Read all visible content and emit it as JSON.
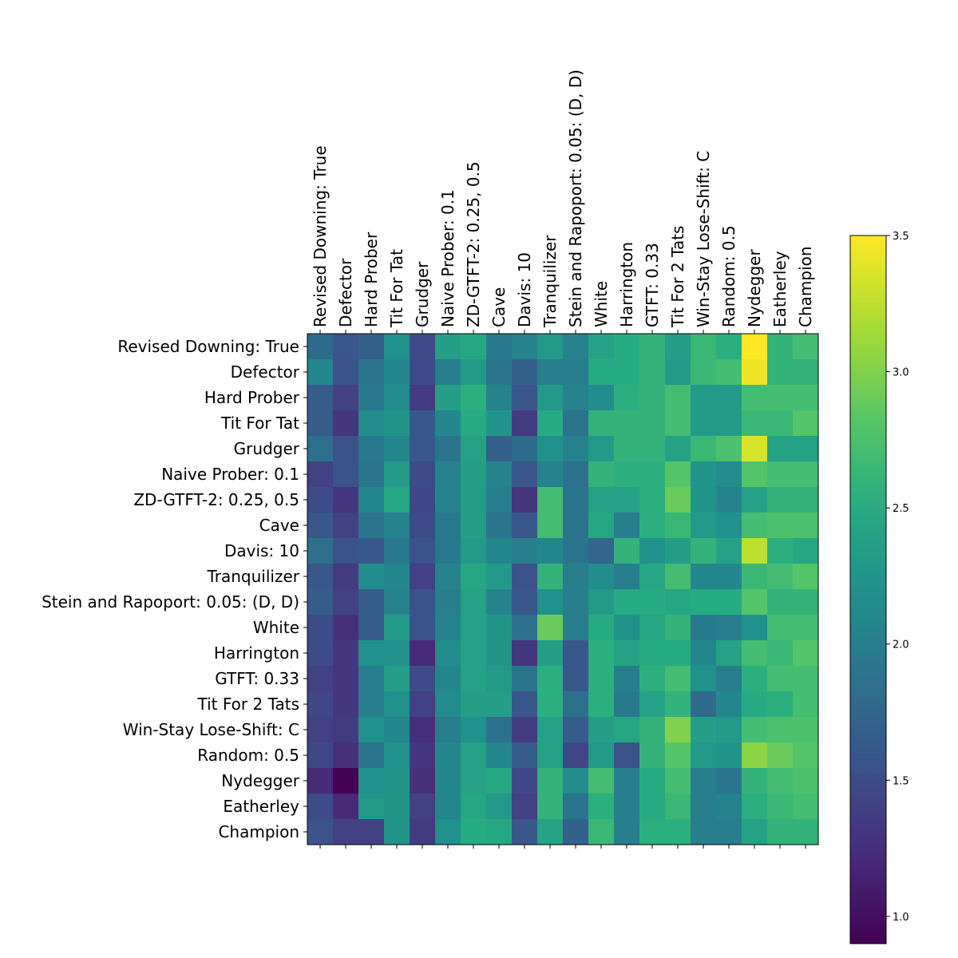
{
  "chart_data": {
    "type": "heatmap",
    "title": "",
    "xlabel": "",
    "ylabel": "",
    "x_tick_position": "top",
    "players": [
      "Revised Downing: True",
      "Defector",
      "Hard Prober",
      "Tit For Tat",
      "Grudger",
      "Naive Prober: 0.1",
      "ZD-GTFT-2: 0.25, 0.5",
      "Cave",
      "Davis: 10",
      "Tranquilizer",
      "Stein and Rapoport: 0.05: (D, D)",
      "White",
      "Harrington",
      "GTFT: 0.33",
      "Tit For 2 Tats",
      "Win-Stay Lose-Shift: C",
      "Random: 0.5",
      "Nydegger",
      "Eatherley",
      "Champion"
    ],
    "values": [
      [
        1.8,
        1.6,
        1.7,
        2.2,
        1.5,
        2.35,
        2.45,
        1.95,
        2.05,
        2.3,
        2.05,
        2.4,
        2.5,
        2.6,
        2.35,
        2.65,
        2.55,
        3.5,
        2.6,
        2.7
      ],
      [
        2.1,
        1.55,
        1.9,
        2.1,
        1.5,
        2.0,
        2.3,
        1.9,
        1.7,
        2.0,
        2.0,
        2.5,
        2.5,
        2.6,
        2.3,
        2.65,
        2.7,
        3.45,
        2.6,
        2.6
      ],
      [
        1.65,
        1.4,
        1.95,
        2.15,
        1.35,
        2.35,
        2.55,
        2.05,
        1.6,
        2.3,
        2.05,
        2.15,
        2.55,
        2.6,
        2.7,
        2.3,
        2.3,
        2.7,
        2.7,
        2.7
      ],
      [
        1.65,
        1.3,
        2.15,
        2.25,
        1.6,
        2.1,
        2.5,
        2.25,
        1.35,
        2.5,
        1.9,
        2.6,
        2.6,
        2.6,
        2.7,
        2.3,
        2.3,
        2.65,
        2.65,
        2.8
      ],
      [
        1.85,
        1.55,
        1.95,
        2.1,
        1.6,
        1.9,
        2.4,
        1.7,
        1.8,
        2.2,
        2.05,
        2.3,
        2.6,
        2.6,
        2.4,
        2.65,
        2.75,
        3.35,
        2.4,
        2.4
      ],
      [
        1.4,
        1.55,
        1.9,
        2.3,
        1.5,
        2.05,
        2.35,
        2.05,
        1.6,
        2.05,
        1.85,
        2.6,
        2.55,
        2.55,
        2.8,
        2.25,
        2.15,
        2.8,
        2.7,
        2.7
      ],
      [
        1.5,
        1.3,
        2.1,
        2.45,
        1.45,
        2.05,
        2.35,
        2.0,
        1.3,
        2.7,
        1.9,
        2.4,
        2.4,
        2.55,
        2.9,
        2.25,
        2.05,
        2.4,
        2.6,
        2.6
      ],
      [
        1.6,
        1.4,
        1.9,
        2.05,
        1.5,
        1.95,
        2.35,
        1.9,
        1.6,
        2.7,
        1.9,
        2.45,
        2.0,
        2.55,
        2.65,
        2.3,
        2.2,
        2.7,
        2.75,
        2.75
      ],
      [
        1.85,
        1.55,
        1.6,
        1.95,
        1.55,
        1.95,
        2.3,
        2.1,
        2.0,
        2.1,
        1.9,
        1.75,
        2.6,
        2.2,
        2.35,
        2.6,
        2.4,
        3.25,
        2.55,
        2.45
      ],
      [
        1.6,
        1.35,
        2.15,
        2.1,
        1.4,
        2.05,
        2.45,
        2.3,
        1.55,
        2.6,
        2.0,
        2.15,
        2.0,
        2.45,
        2.7,
        2.1,
        2.1,
        2.65,
        2.7,
        2.8
      ],
      [
        1.65,
        1.4,
        1.65,
        2.05,
        1.55,
        2.0,
        2.4,
        2.05,
        1.6,
        2.2,
        2.0,
        2.3,
        2.5,
        2.5,
        2.45,
        2.5,
        2.5,
        2.8,
        2.6,
        2.6
      ],
      [
        1.5,
        1.25,
        1.65,
        2.3,
        1.55,
        2.05,
        2.4,
        2.25,
        1.85,
        2.9,
        2.0,
        2.5,
        2.2,
        2.45,
        2.6,
        1.95,
        2.0,
        2.2,
        2.7,
        2.7
      ],
      [
        1.5,
        1.3,
        2.2,
        2.2,
        1.2,
        2.15,
        2.4,
        2.25,
        1.3,
        2.35,
        1.6,
        2.55,
        2.4,
        2.5,
        2.5,
        2.1,
        2.4,
        2.7,
        2.65,
        2.8
      ],
      [
        1.4,
        1.3,
        2.0,
        2.35,
        1.5,
        2.1,
        2.4,
        2.3,
        1.9,
        2.55,
        1.6,
        2.55,
        2.0,
        2.55,
        2.7,
        2.2,
        2.0,
        2.55,
        2.7,
        2.7
      ],
      [
        1.45,
        1.3,
        2.0,
        2.2,
        1.4,
        2.15,
        2.35,
        2.35,
        1.6,
        2.55,
        1.85,
        2.55,
        1.95,
        2.4,
        2.6,
        1.8,
        2.1,
        2.5,
        2.55,
        2.7
      ],
      [
        1.4,
        1.35,
        2.2,
        2.1,
        1.25,
        2.0,
        2.2,
        1.85,
        1.35,
        2.4,
        1.65,
        2.35,
        2.45,
        2.6,
        3.0,
        2.35,
        2.3,
        2.7,
        2.75,
        2.75
      ],
      [
        1.45,
        1.25,
        1.9,
        2.2,
        1.3,
        2.1,
        2.4,
        2.1,
        1.65,
        2.4,
        1.45,
        2.3,
        1.55,
        2.6,
        2.8,
        2.3,
        2.25,
        3.05,
        2.9,
        2.8
      ],
      [
        1.2,
        0.9,
        2.2,
        2.25,
        1.25,
        2.1,
        2.4,
        2.45,
        1.45,
        2.6,
        2.15,
        2.7,
        2.0,
        2.5,
        2.7,
        2.0,
        1.9,
        2.6,
        2.7,
        2.75
      ],
      [
        1.5,
        1.2,
        2.3,
        2.25,
        1.4,
        2.1,
        2.45,
        2.3,
        1.4,
        2.6,
        1.9,
        2.55,
        2.0,
        2.5,
        2.65,
        2.0,
        2.05,
        2.55,
        2.65,
        2.7
      ],
      [
        1.55,
        1.4,
        1.4,
        2.25,
        1.35,
        2.2,
        2.5,
        2.45,
        1.6,
        2.4,
        1.7,
        2.65,
        2.0,
        2.55,
        2.55,
        2.0,
        2.0,
        2.4,
        2.6,
        2.6
      ]
    ],
    "colormap": "viridis",
    "vmin": 0.9,
    "vmax": 3.5,
    "colorbar_ticks": [
      1.0,
      1.5,
      2.0,
      2.5,
      3.0,
      3.5
    ],
    "colorbar_tick_labels": [
      "1.0",
      "1.5",
      "2.0",
      "2.5",
      "3.0",
      "3.5"
    ],
    "grid": false,
    "legend": "colorbar-right"
  }
}
